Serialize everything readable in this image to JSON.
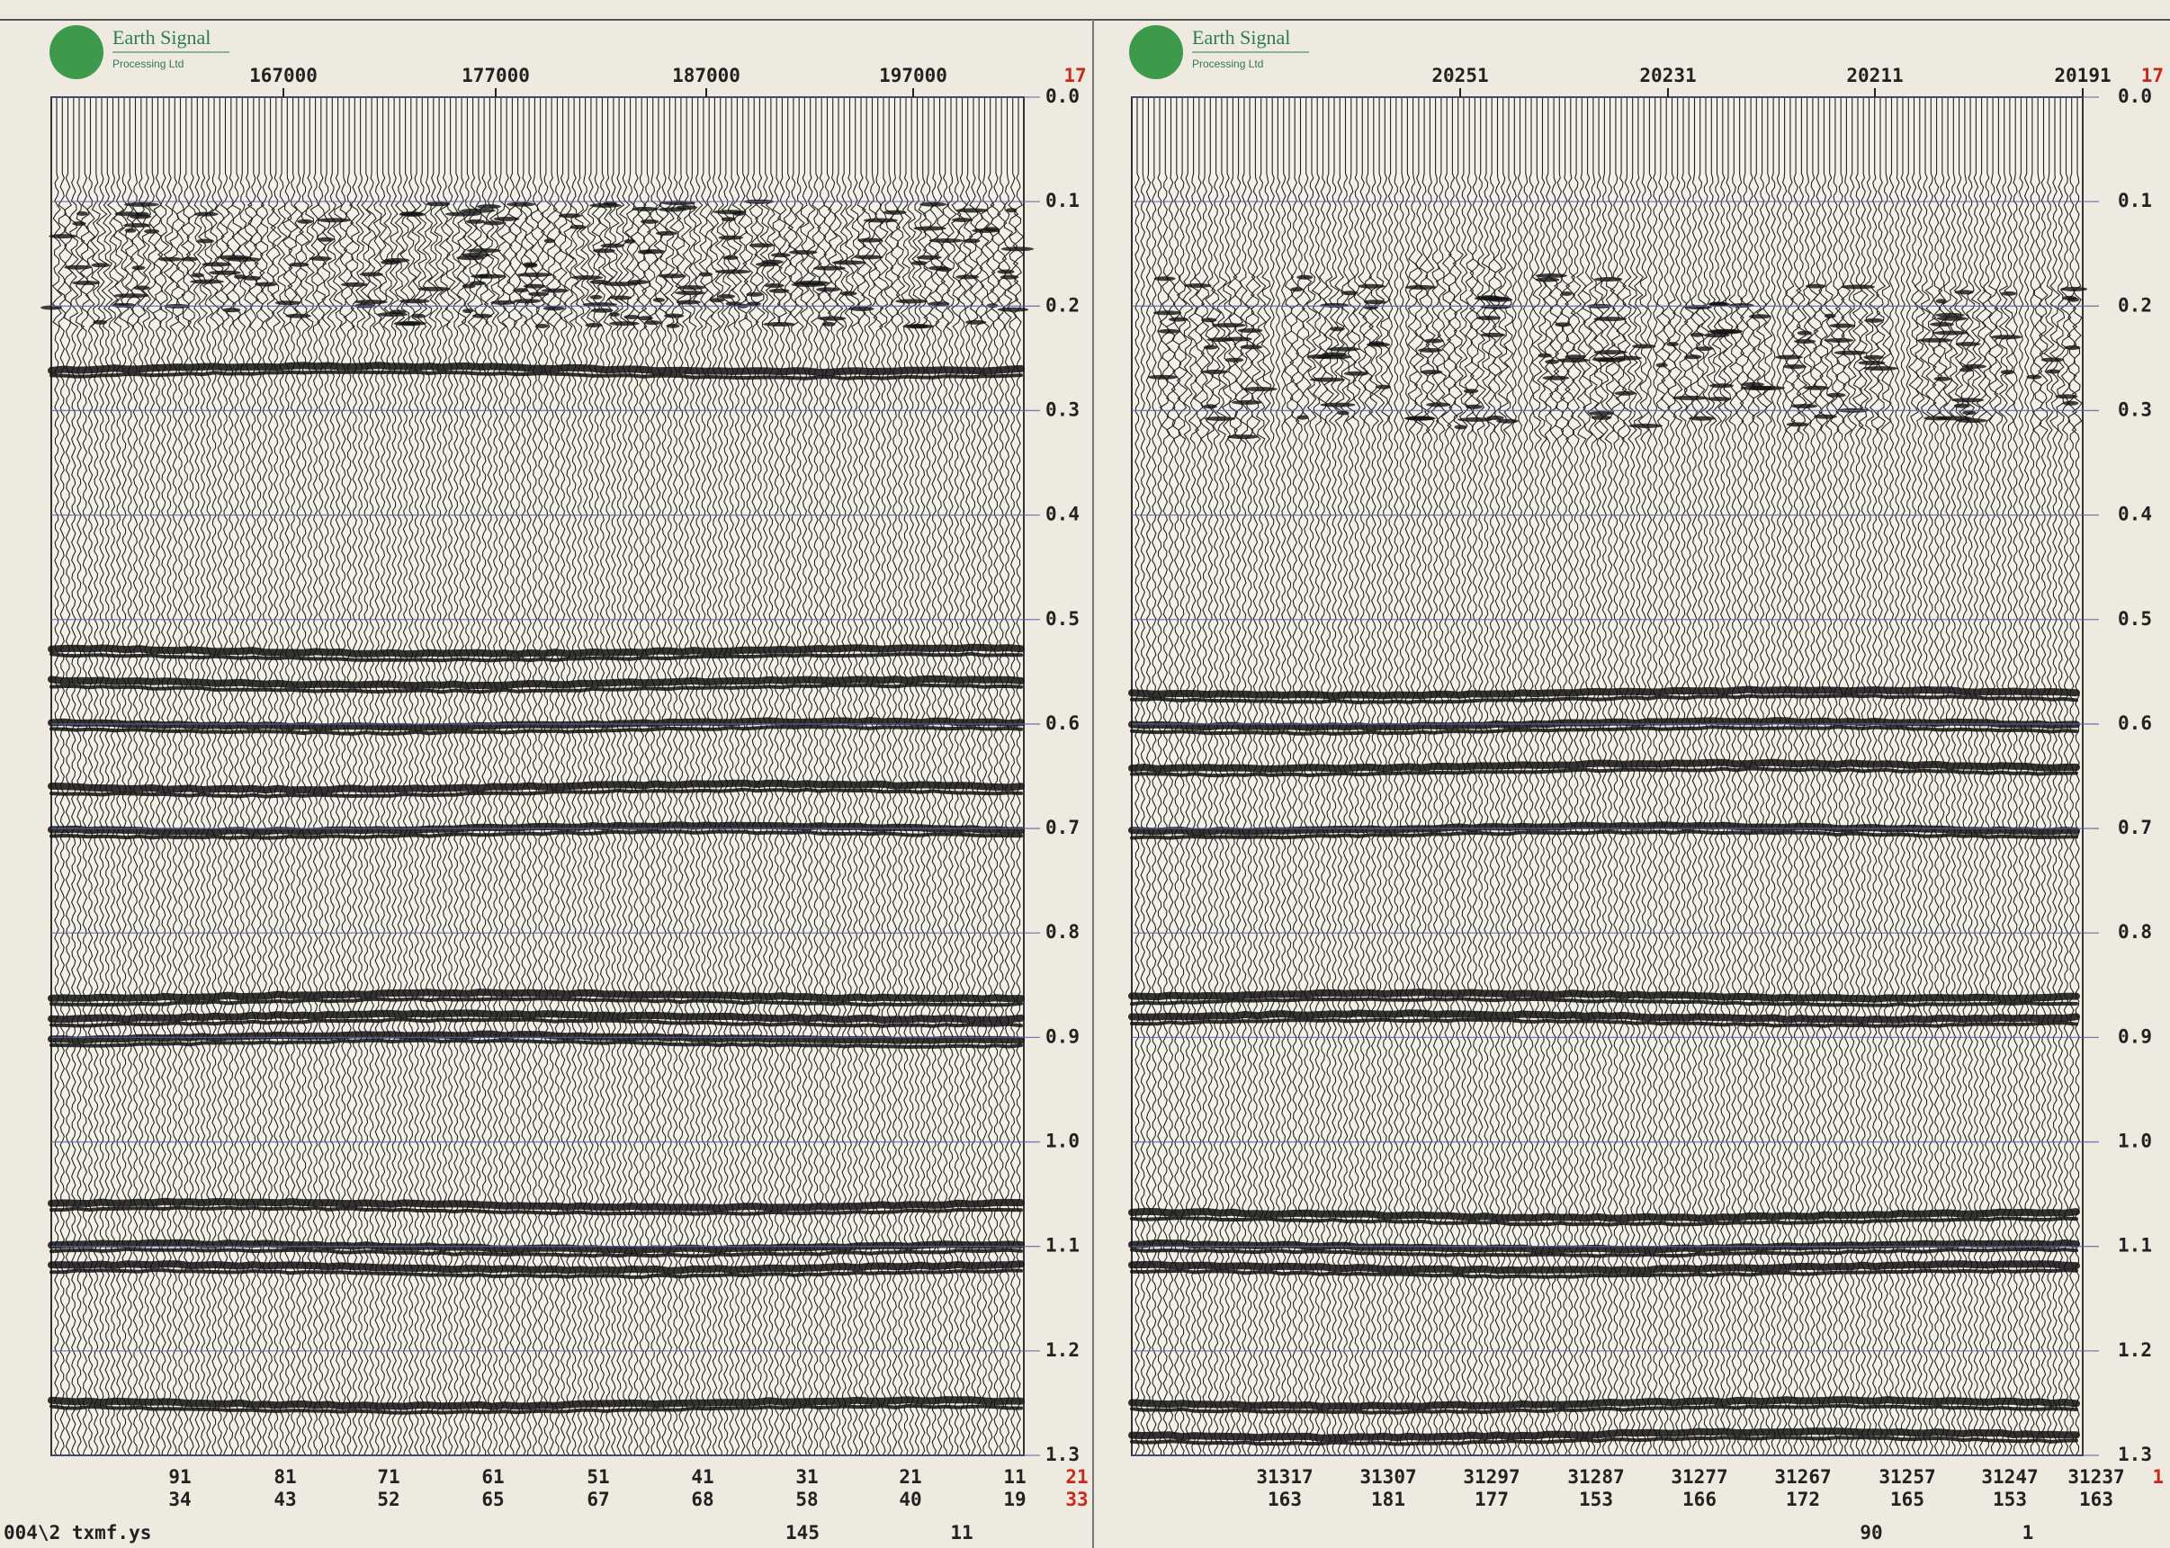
{
  "panels": [
    {
      "logo": {
        "name": "Earth Signal",
        "sub": "Processing Ltd"
      },
      "top_labels": [
        "167000",
        "177000",
        "187000",
        "197000"
      ],
      "top_corner": "17",
      "time_ticks": [
        "0.0",
        "0.1",
        "0.2",
        "0.3",
        "0.4",
        "0.5",
        "0.6",
        "0.7",
        "0.8",
        "0.9",
        "1.0",
        "1.1",
        "1.2",
        "1.3"
      ],
      "bottom_labels": [
        [
          "91",
          "34"
        ],
        [
          "81",
          "43"
        ],
        [
          "71",
          "52"
        ],
        [
          "61",
          "65"
        ],
        [
          "51",
          "67"
        ],
        [
          "41",
          "68"
        ],
        [
          "31",
          "58"
        ],
        [
          "21",
          "40"
        ],
        [
          "11",
          "19"
        ]
      ],
      "bottom_corner": [
        "21",
        "33"
      ],
      "footer": [
        "145",
        "11"
      ]
    },
    {
      "logo": {
        "name": "Earth Signal",
        "sub": "Processing Ltd"
      },
      "top_labels": [
        "20251",
        "20231",
        "20211",
        "20191"
      ],
      "top_corner": "17",
      "time_ticks": [
        "0.0",
        "0.1",
        "0.2",
        "0.3",
        "0.4",
        "0.5",
        "0.6",
        "0.7",
        "0.8",
        "0.9",
        "1.0",
        "1.1",
        "1.2",
        "1.3"
      ],
      "bottom_labels": [
        [
          "31317",
          "163"
        ],
        [
          "31307",
          "181"
        ],
        [
          "31297",
          "177"
        ],
        [
          "31287",
          "153"
        ],
        [
          "31277",
          "166"
        ],
        [
          "31267",
          "172"
        ],
        [
          "31257",
          "165"
        ],
        [
          "31247",
          "153"
        ],
        [
          "31237",
          "163"
        ]
      ],
      "bottom_corner": [
        "1"
      ],
      "footer": [
        "90",
        "1"
      ]
    }
  ],
  "file_label": "004\\2 txmf.ys"
}
